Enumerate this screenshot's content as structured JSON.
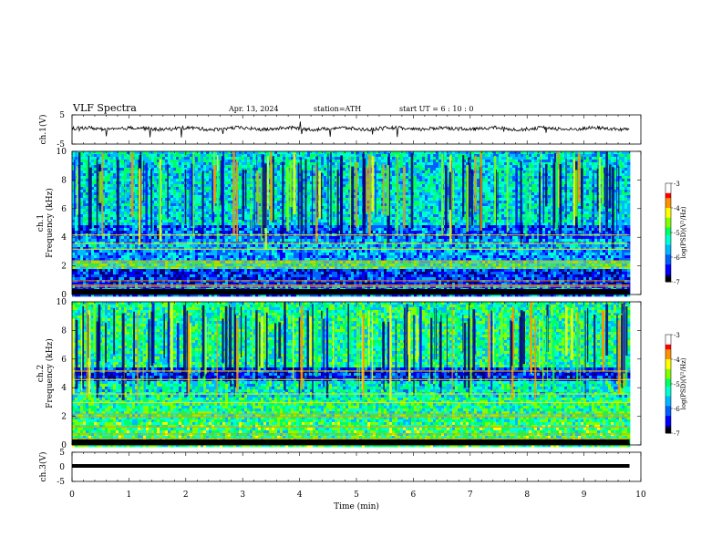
{
  "header": {
    "title": "VLF  Spectra",
    "date": "Apr. 13, 2024",
    "station": "station=ATH",
    "start": "start  UT  =   6  : 10 : 0"
  },
  "colors": {
    "spectrogram_scale": [
      "#000000",
      "#1a1aff",
      "#00b0ff",
      "#00e080",
      "#ffff00",
      "#ff8000",
      "#ff0000",
      "#ffffff"
    ],
    "trace": "#000000",
    "axis": "#000000"
  },
  "chart_data": [
    {
      "type": "line",
      "panel": "ch1-waveform",
      "ylabel": "ch.1(V)",
      "ylim": [
        -5,
        5
      ],
      "yticks": [
        "5",
        "-5"
      ],
      "xlim": [
        0,
        10
      ],
      "series": [
        {
          "x": [
            0,
            1,
            2,
            3,
            4,
            5,
            6,
            7,
            8,
            9,
            9.8
          ],
          "values": [
            0,
            0.2,
            0.3,
            0.4,
            0.3,
            0.2,
            0.3,
            0.2,
            0.1,
            0.3,
            0.3
          ]
        }
      ]
    },
    {
      "type": "heatmap",
      "panel": "ch1-spectrogram",
      "ylabel": "Frequency  (kHz)",
      "channel_label": "ch.1",
      "ylim": [
        0,
        10
      ],
      "yticks": [
        "0",
        "2",
        "4",
        "6",
        "8",
        "10"
      ],
      "xlim": [
        0,
        10
      ],
      "data_end_min": 9.8,
      "colorbar": {
        "label": "log(PSD)(V²/Hz)",
        "range": [
          -7,
          -3
        ],
        "ticks": [
          "-3",
          "-4",
          "-5",
          "-6",
          "-7"
        ]
      }
    },
    {
      "type": "heatmap",
      "panel": "ch2-spectrogram",
      "ylabel": "Frequency  (kHz)",
      "channel_label": "ch.2",
      "ylim": [
        0,
        10
      ],
      "yticks": [
        "0",
        "2",
        "4",
        "6",
        "8",
        "10"
      ],
      "xlim": [
        0,
        10
      ],
      "data_end_min": 9.8,
      "colorbar": {
        "label": "log(PSD)(V²/Hz)",
        "range": [
          -7,
          -3
        ],
        "ticks": [
          "-3",
          "-4",
          "-5",
          "-6",
          "-7"
        ]
      }
    },
    {
      "type": "line",
      "panel": "ch3-waveform",
      "ylabel": "ch.3(V)",
      "ylim": [
        -5,
        5
      ],
      "yticks": [
        "5",
        "0",
        "-5"
      ],
      "xlim": [
        0,
        10
      ],
      "xlabel": "Time  (min)",
      "xticks": [
        "0",
        "1",
        "2",
        "3",
        "4",
        "5",
        "6",
        "7",
        "8",
        "9",
        "10"
      ],
      "series": [
        {
          "x": [
            0,
            9.8
          ],
          "values": [
            0,
            0
          ]
        }
      ]
    }
  ]
}
